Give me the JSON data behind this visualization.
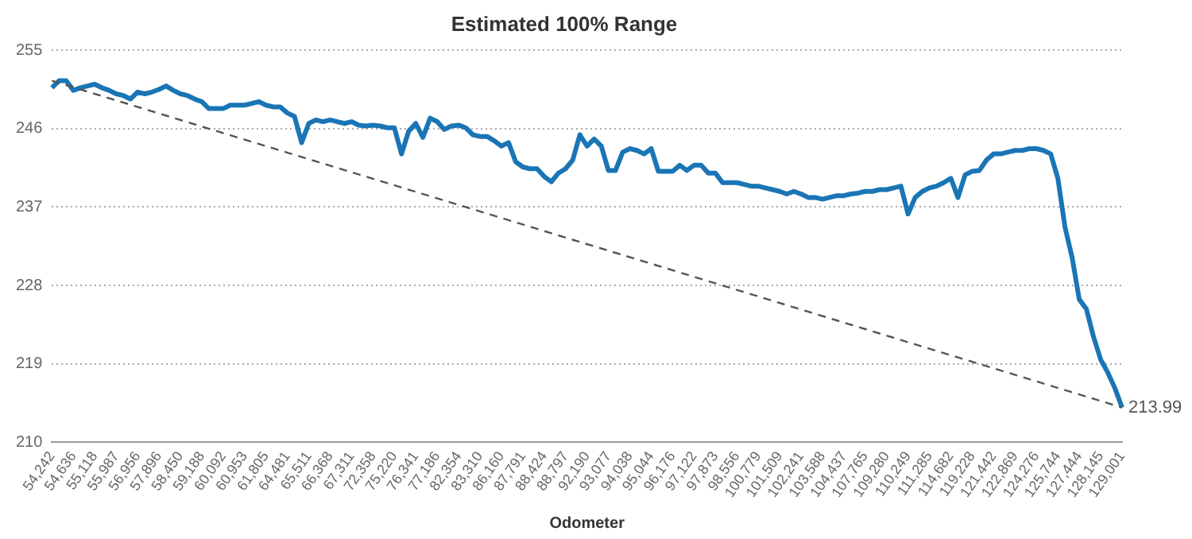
{
  "chart_data": {
    "type": "line",
    "title": "Estimated 100% Range",
    "xlabel": "Odometer",
    "categories": [
      "54,242",
      null,
      null,
      "54,636",
      null,
      null,
      "55,118",
      null,
      null,
      "55,987",
      null,
      null,
      "56,956",
      null,
      null,
      "57,896",
      null,
      null,
      "58,450",
      null,
      null,
      "59,188",
      null,
      null,
      "60,092",
      null,
      null,
      "60,953",
      null,
      null,
      "61,805",
      null,
      null,
      "64,481",
      null,
      null,
      "65,511",
      null,
      null,
      "66,368",
      null,
      null,
      "67,311",
      null,
      null,
      "72,358",
      null,
      null,
      "75,220",
      null,
      null,
      "76,341",
      null,
      null,
      "77,186",
      null,
      null,
      "82,354",
      null,
      null,
      "83,310",
      null,
      null,
      "86,160",
      null,
      null,
      "87,791",
      null,
      null,
      "88,424",
      null,
      null,
      "88,797",
      null,
      null,
      "92,190",
      null,
      null,
      "93,077",
      null,
      null,
      "94,038",
      null,
      null,
      "95,044",
      null,
      null,
      "96,176",
      null,
      null,
      "97,122",
      null,
      null,
      "97,873",
      null,
      null,
      "98,556",
      null,
      null,
      "100,779",
      null,
      null,
      "101,509",
      null,
      null,
      "102,241",
      null,
      null,
      "103,588",
      null,
      null,
      "104,437",
      null,
      null,
      "107,765",
      null,
      null,
      "109,280",
      null,
      null,
      "110,249",
      null,
      null,
      "111,285",
      null,
      null,
      "114,682",
      null,
      null,
      "119,228",
      null,
      null,
      "121,442",
      null,
      null,
      "122,869",
      null,
      null,
      "124,276",
      null,
      null,
      "125,744",
      null,
      null,
      "127,444",
      null,
      null,
      "128,145",
      null,
      null,
      "129,001"
    ],
    "series": [
      {
        "color": "#1a75b5",
        "values": [
          250.7,
          251.5,
          251.5,
          250.4,
          250.7,
          250.9,
          251.1,
          250.7,
          250.4,
          250.0,
          249.8,
          249.4,
          250.2,
          250.0,
          250.2,
          250.5,
          250.9,
          250.4,
          250.0,
          249.8,
          249.4,
          249.1,
          248.3,
          248.3,
          248.3,
          248.7,
          248.7,
          248.7,
          248.9,
          249.1,
          248.7,
          248.5,
          248.5,
          247.8,
          247.4,
          244.4,
          246.6,
          247.0,
          246.8,
          247.0,
          246.8,
          246.6,
          246.8,
          246.4,
          246.3,
          246.4,
          246.3,
          246.1,
          246.1,
          243.1,
          245.7,
          246.6,
          245.0,
          247.2,
          246.8,
          245.9,
          246.3,
          246.4,
          246.1,
          245.3,
          245.1,
          245.1,
          244.6,
          244.0,
          244.4,
          242.2,
          241.6,
          241.4,
          241.4,
          240.5,
          239.9,
          240.9,
          241.4,
          242.4,
          245.3,
          244.0,
          244.8,
          244.0,
          241.2,
          241.2,
          243.3,
          243.7,
          243.5,
          243.1,
          243.7,
          241.1,
          241.1,
          241.1,
          241.8,
          241.2,
          241.8,
          241.8,
          240.9,
          240.9,
          239.8,
          239.8,
          239.8,
          239.6,
          239.4,
          239.4,
          239.2,
          239.0,
          238.8,
          238.5,
          238.8,
          238.5,
          238.1,
          238.1,
          237.9,
          238.1,
          238.3,
          238.3,
          238.5,
          238.6,
          238.8,
          238.8,
          239.0,
          239.0,
          239.2,
          239.4,
          236.2,
          238.1,
          238.8,
          239.2,
          239.4,
          239.8,
          240.3,
          238.1,
          240.7,
          241.1,
          241.2,
          242.4,
          243.1,
          243.1,
          243.3,
          243.5,
          243.5,
          243.7,
          243.7,
          243.5,
          243.1,
          240.3,
          234.7,
          231.2,
          226.4,
          225.3,
          222.1,
          219.5,
          218.0,
          216.2,
          213.99
        ]
      },
      {
        "color": "#555555",
        "line_style": "dashed",
        "x": [
          "54,242",
          "129,001"
        ],
        "values": [
          251.5,
          213.99
        ]
      }
    ],
    "ylim": [
      210,
      255
    ],
    "yticks": [
      210,
      219,
      228,
      237,
      246,
      255
    ],
    "grid": "y",
    "legend": false,
    "marker": "none",
    "line_style": "solid",
    "annotations": [
      {
        "text": "213.99",
        "x": "129,001",
        "y": 213.99
      }
    ]
  }
}
